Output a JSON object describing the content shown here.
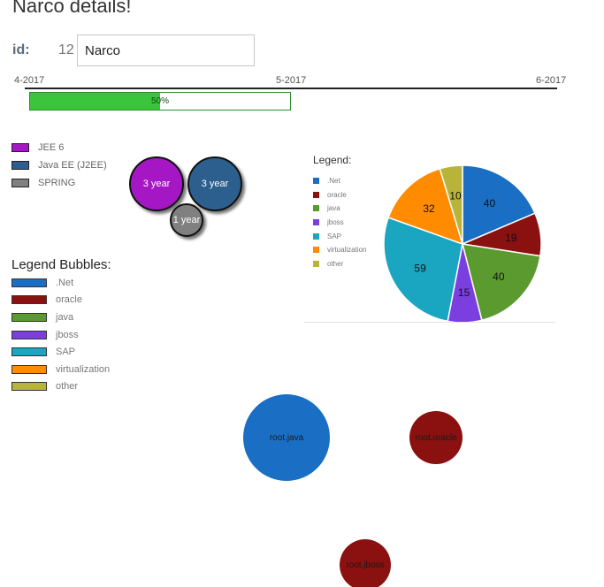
{
  "header": {
    "title": "Narco details!"
  },
  "form": {
    "id_label": "id:",
    "id_value": "12",
    "name_value": "Narco"
  },
  "timeline": {
    "start": "4-2017",
    "mid": "5-2017",
    "end": "6-2017",
    "progress_label": "50%",
    "progress_fraction": 0.5
  },
  "skills": {
    "items": [
      {
        "label": "JEE 6",
        "color": "#a517c4"
      },
      {
        "label": "Java EE (J2EE)",
        "color": "#2c5f8e"
      },
      {
        "label": "SPRING",
        "color": "#808080"
      }
    ],
    "bubbles": [
      {
        "label": "3 year",
        "color": "#a517c4"
      },
      {
        "label": "3 year",
        "color": "#2c5f8e"
      },
      {
        "label": "1 year",
        "color": "#808080"
      }
    ]
  },
  "legend_bubbles": {
    "title": "Legend Bubbles:",
    "items": [
      {
        "label": ".Net",
        "color": "#1a6fc4"
      },
      {
        "label": "oracle",
        "color": "#8b1010"
      },
      {
        "label": "java",
        "color": "#5b9a2f"
      },
      {
        "label": "jboss",
        "color": "#7b3fe0"
      },
      {
        "label": "SAP",
        "color": "#1aa5c0"
      },
      {
        "label": "virtualization",
        "color": "#ff8c00"
      },
      {
        "label": "other",
        "color": "#b8b43a"
      }
    ]
  },
  "pie_legend": {
    "title": "Legend:"
  },
  "chart_data": {
    "type": "pie",
    "categories": [
      ".Net",
      "oracle",
      "java",
      "jboss",
      "SAP",
      "virtualization",
      "other"
    ],
    "values": [
      40,
      19,
      40,
      15,
      59,
      32,
      10
    ],
    "colors": [
      "#1a6fc4",
      "#8b1010",
      "#5b9a2f",
      "#7b3fe0",
      "#1aa5c0",
      "#ff8c00",
      "#b8b43a"
    ],
    "legend_position": "left"
  },
  "root_bubbles": [
    {
      "label": "root.java",
      "color": "#1a6fc4"
    },
    {
      "label": "root.oracle",
      "color": "#8b1010"
    },
    {
      "label": "root.jboss",
      "color": "#8b1010"
    }
  ]
}
